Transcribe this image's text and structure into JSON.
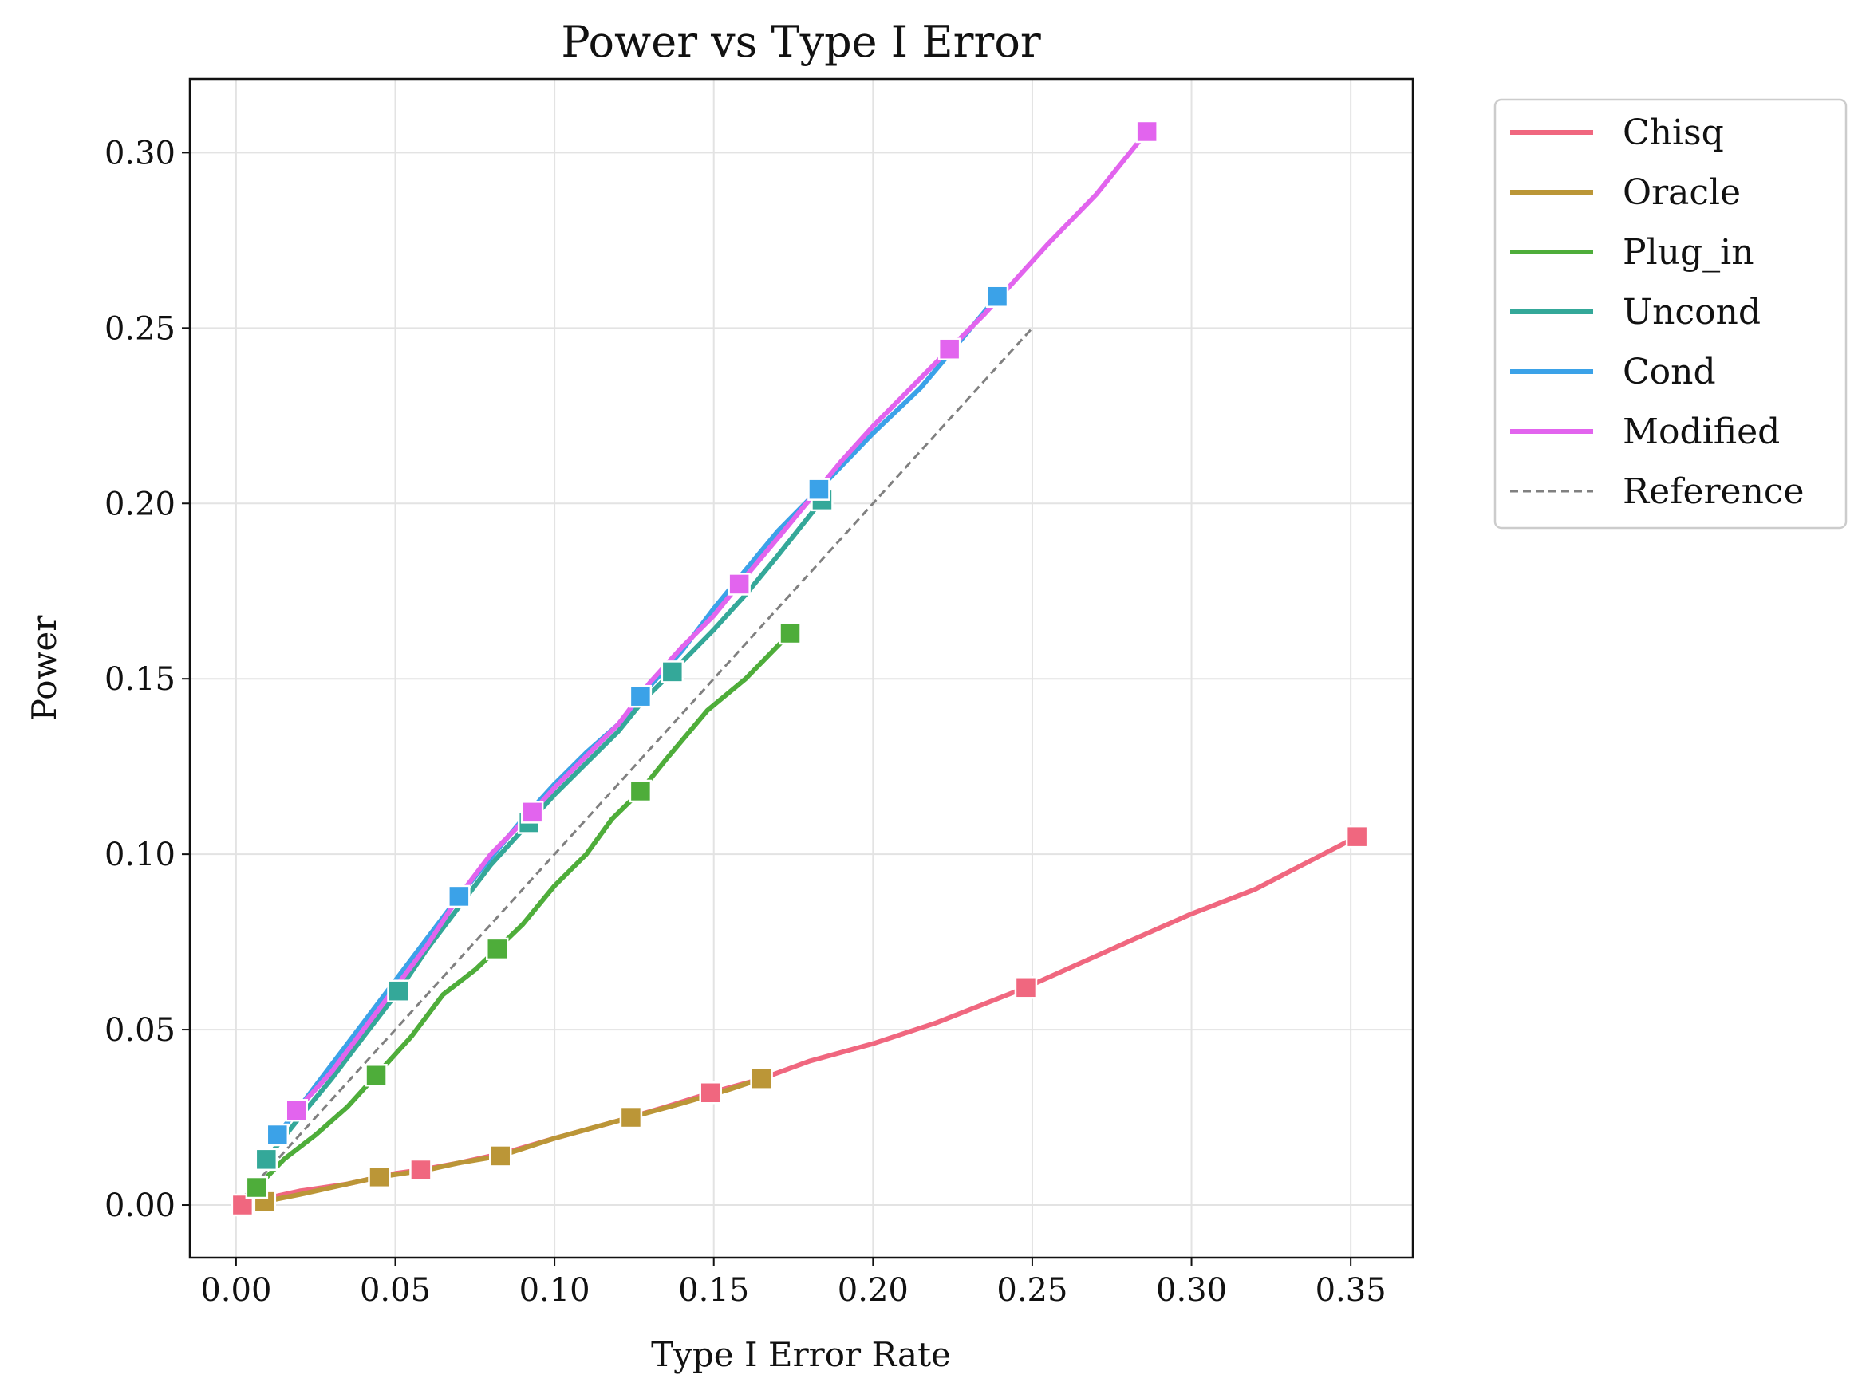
{
  "chart_data": {
    "type": "line",
    "title": "Power vs Type I Error",
    "xlabel": "Type I Error Rate",
    "ylabel": "Power",
    "xlim": [
      -0.0145,
      0.3695
    ],
    "ylim": [
      -0.015,
      0.321
    ],
    "x_ticks": [
      0.0,
      0.05,
      0.1,
      0.15,
      0.2,
      0.25,
      0.3,
      0.35
    ],
    "x_tick_labels": [
      "0.00",
      "0.05",
      "0.10",
      "0.15",
      "0.20",
      "0.25",
      "0.30",
      "0.35"
    ],
    "y_ticks": [
      0.0,
      0.05,
      0.1,
      0.15,
      0.2,
      0.25,
      0.3
    ],
    "y_tick_labels": [
      "0.00",
      "0.05",
      "0.10",
      "0.15",
      "0.20",
      "0.25",
      "0.30"
    ],
    "grid": true,
    "legend_position": "outside upper right",
    "series": [
      {
        "name": "Chisq",
        "color": "#f0677f",
        "line": [
          [
            0.002,
            0.0
          ],
          [
            0.01,
            0.002
          ],
          [
            0.02,
            0.004
          ],
          [
            0.035,
            0.006
          ],
          [
            0.05,
            0.009
          ],
          [
            0.058,
            0.01
          ],
          [
            0.07,
            0.012
          ],
          [
            0.085,
            0.015
          ],
          [
            0.1,
            0.019
          ],
          [
            0.12,
            0.024
          ],
          [
            0.135,
            0.028
          ],
          [
            0.149,
            0.032
          ],
          [
            0.165,
            0.036
          ],
          [
            0.18,
            0.041
          ],
          [
            0.2,
            0.046
          ],
          [
            0.22,
            0.052
          ],
          [
            0.248,
            0.062
          ],
          [
            0.28,
            0.075
          ],
          [
            0.3,
            0.083
          ],
          [
            0.32,
            0.09
          ],
          [
            0.352,
            0.105
          ]
        ],
        "markers": [
          [
            0.002,
            0.0
          ],
          [
            0.058,
            0.01
          ],
          [
            0.149,
            0.032
          ],
          [
            0.248,
            0.062
          ],
          [
            0.352,
            0.105
          ]
        ]
      },
      {
        "name": "Oracle",
        "color": "#bb9637",
        "line": [
          [
            0.009,
            0.001
          ],
          [
            0.02,
            0.003
          ],
          [
            0.03,
            0.005
          ],
          [
            0.045,
            0.008
          ],
          [
            0.06,
            0.01
          ],
          [
            0.07,
            0.012
          ],
          [
            0.083,
            0.014
          ],
          [
            0.1,
            0.019
          ],
          [
            0.112,
            0.022
          ],
          [
            0.124,
            0.025
          ],
          [
            0.14,
            0.029
          ],
          [
            0.155,
            0.033
          ],
          [
            0.165,
            0.036
          ]
        ],
        "markers": [
          [
            0.009,
            0.001
          ],
          [
            0.045,
            0.008
          ],
          [
            0.083,
            0.014
          ],
          [
            0.124,
            0.025
          ],
          [
            0.165,
            0.036
          ]
        ]
      },
      {
        "name": "Plug_in",
        "color": "#4ead3a",
        "line": [
          [
            0.0065,
            0.005
          ],
          [
            0.015,
            0.013
          ],
          [
            0.025,
            0.02
          ],
          [
            0.035,
            0.028
          ],
          [
            0.044,
            0.037
          ],
          [
            0.055,
            0.048
          ],
          [
            0.065,
            0.06
          ],
          [
            0.075,
            0.067
          ],
          [
            0.082,
            0.073
          ],
          [
            0.09,
            0.08
          ],
          [
            0.1,
            0.091
          ],
          [
            0.11,
            0.1
          ],
          [
            0.118,
            0.11
          ],
          [
            0.127,
            0.118
          ],
          [
            0.135,
            0.127
          ],
          [
            0.148,
            0.141
          ],
          [
            0.16,
            0.15
          ],
          [
            0.174,
            0.163
          ]
        ],
        "markers": [
          [
            0.0065,
            0.005
          ],
          [
            0.044,
            0.037
          ],
          [
            0.082,
            0.073
          ],
          [
            0.127,
            0.118
          ],
          [
            0.174,
            0.163
          ]
        ]
      },
      {
        "name": "Uncond",
        "color": "#34a899",
        "line": [
          [
            0.0095,
            0.013
          ],
          [
            0.02,
            0.025
          ],
          [
            0.03,
            0.036
          ],
          [
            0.04,
            0.048
          ],
          [
            0.051,
            0.061
          ],
          [
            0.06,
            0.073
          ],
          [
            0.07,
            0.085
          ],
          [
            0.08,
            0.097
          ],
          [
            0.092,
            0.109
          ],
          [
            0.1,
            0.117
          ],
          [
            0.11,
            0.126
          ],
          [
            0.12,
            0.135
          ],
          [
            0.128,
            0.144
          ],
          [
            0.137,
            0.152
          ],
          [
            0.15,
            0.164
          ],
          [
            0.16,
            0.174
          ],
          [
            0.17,
            0.185
          ],
          [
            0.184,
            0.201
          ]
        ],
        "markers": [
          [
            0.0095,
            0.013
          ],
          [
            0.051,
            0.061
          ],
          [
            0.092,
            0.109
          ],
          [
            0.137,
            0.152
          ],
          [
            0.184,
            0.201
          ]
        ]
      },
      {
        "name": "Cond",
        "color": "#3ba2e8",
        "line": [
          [
            0.013,
            0.02
          ],
          [
            0.02,
            0.028
          ],
          [
            0.03,
            0.04
          ],
          [
            0.04,
            0.052
          ],
          [
            0.05,
            0.064
          ],
          [
            0.06,
            0.076
          ],
          [
            0.07,
            0.088
          ],
          [
            0.08,
            0.099
          ],
          [
            0.09,
            0.11
          ],
          [
            0.1,
            0.12
          ],
          [
            0.11,
            0.129
          ],
          [
            0.12,
            0.137
          ],
          [
            0.127,
            0.145
          ],
          [
            0.14,
            0.158
          ],
          [
            0.15,
            0.17
          ],
          [
            0.16,
            0.181
          ],
          [
            0.17,
            0.192
          ],
          [
            0.183,
            0.204
          ],
          [
            0.2,
            0.22
          ],
          [
            0.215,
            0.233
          ],
          [
            0.228,
            0.247
          ],
          [
            0.239,
            0.259
          ]
        ],
        "markers": [
          [
            0.013,
            0.02
          ],
          [
            0.07,
            0.088
          ],
          [
            0.127,
            0.145
          ],
          [
            0.183,
            0.204
          ],
          [
            0.239,
            0.259
          ]
        ]
      },
      {
        "name": "Modified",
        "color": "#e264ee",
        "line": [
          [
            0.019,
            0.027
          ],
          [
            0.03,
            0.038
          ],
          [
            0.04,
            0.05
          ],
          [
            0.05,
            0.062
          ],
          [
            0.06,
            0.074
          ],
          [
            0.07,
            0.088
          ],
          [
            0.08,
            0.1
          ],
          [
            0.093,
            0.112
          ],
          [
            0.1,
            0.119
          ],
          [
            0.11,
            0.128
          ],
          [
            0.12,
            0.137
          ],
          [
            0.13,
            0.149
          ],
          [
            0.14,
            0.159
          ],
          [
            0.15,
            0.168
          ],
          [
            0.158,
            0.177
          ],
          [
            0.17,
            0.19
          ],
          [
            0.18,
            0.201
          ],
          [
            0.19,
            0.212
          ],
          [
            0.2,
            0.222
          ],
          [
            0.212,
            0.233
          ],
          [
            0.224,
            0.244
          ],
          [
            0.235,
            0.254
          ],
          [
            0.245,
            0.264
          ],
          [
            0.255,
            0.274
          ],
          [
            0.27,
            0.288
          ],
          [
            0.286,
            0.306
          ]
        ],
        "markers": [
          [
            0.019,
            0.027
          ],
          [
            0.093,
            0.112
          ],
          [
            0.158,
            0.177
          ],
          [
            0.224,
            0.244
          ],
          [
            0.286,
            0.306
          ]
        ]
      }
    ],
    "reference": {
      "name": "Reference",
      "color": "#808080",
      "dashed": true,
      "points": [
        [
          0.0,
          0.0
        ],
        [
          0.25,
          0.25
        ]
      ]
    },
    "legend": [
      "Chisq",
      "Oracle",
      "Plug_in",
      "Uncond",
      "Cond",
      "Modified",
      "Reference"
    ]
  }
}
